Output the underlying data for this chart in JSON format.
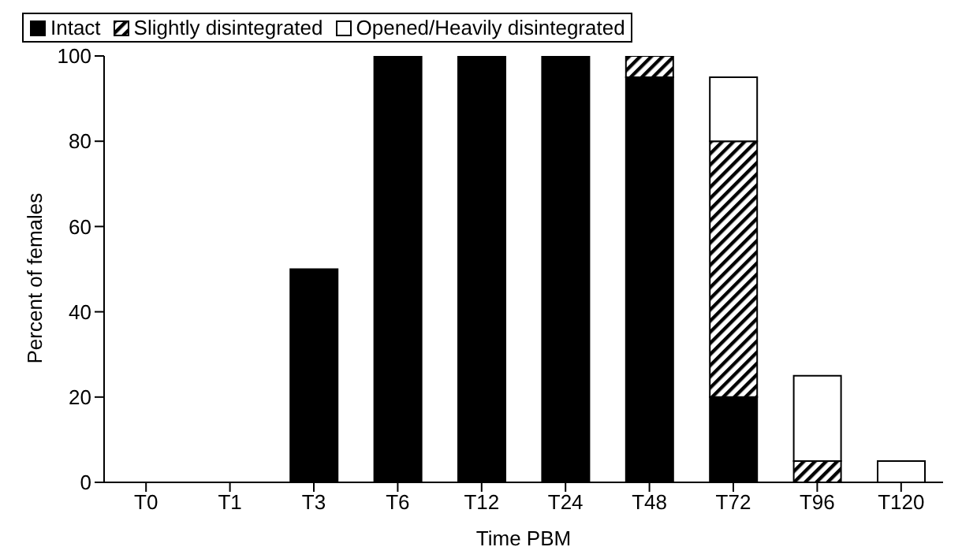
{
  "chart_data": {
    "type": "bar",
    "stacked": true,
    "xlabel": "Time PBM",
    "ylabel": "Percent of females",
    "categories": [
      "T0",
      "T1",
      "T3",
      "T6",
      "T12",
      "T24",
      "T48",
      "T72",
      "T96",
      "T120"
    ],
    "series": [
      {
        "name": "Intact",
        "color": "#000000",
        "values": [
          0,
          0,
          50,
          100,
          100,
          100,
          95,
          20,
          0,
          0
        ]
      },
      {
        "name": "Slightly disintegrated",
        "color": "#000000",
        "values": [
          0,
          0,
          0,
          0,
          0,
          0,
          5,
          60,
          5,
          0
        ]
      },
      {
        "name": "Opened/Heavily disintegrated",
        "color": "#ffffff",
        "values": [
          0,
          0,
          0,
          0,
          0,
          0,
          0,
          15,
          20,
          5
        ]
      }
    ],
    "ylim": [
      0,
      100
    ],
    "yticks": [
      0,
      20,
      40,
      60,
      80,
      100
    ],
    "legend": "top left",
    "grid": false
  }
}
